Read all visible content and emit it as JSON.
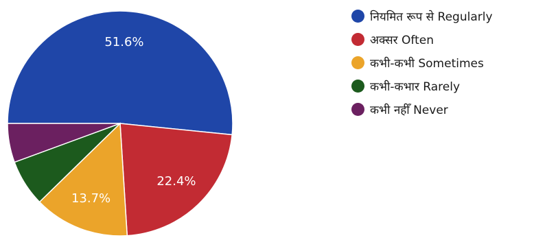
{
  "chart_data": {
    "type": "pie",
    "title": "",
    "categories": [
      "नियमित रूप से Regularly",
      "अक्सर Often",
      "कभी-कभी Sometimes",
      "कभी-कभार Rarely",
      "कभी नहीँ Never"
    ],
    "values": [
      51.6,
      22.4,
      13.7,
      6.7,
      5.6
    ],
    "data_labels": [
      "51.6%",
      "22.4%",
      "13.7%",
      "",
      ""
    ],
    "colors": [
      "#1f46a8",
      "#c22b33",
      "#eba42a",
      "#1c5a1d",
      "#6b2060"
    ],
    "legend_position": "right"
  }
}
